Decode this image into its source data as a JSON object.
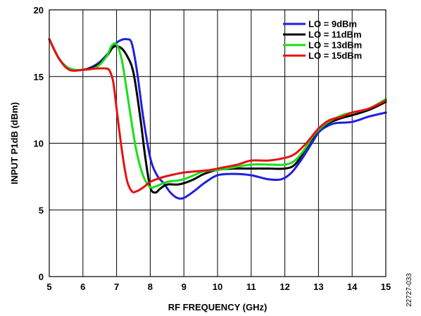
{
  "figure_id": "22727-033",
  "chart_data": {
    "type": "line",
    "xlabel": "RF FREQUENCY (GHz)",
    "ylabel": "INPUT P1dB (dBm)",
    "xlim": [
      5,
      15
    ],
    "ylim": [
      0,
      20
    ],
    "xticks": [
      5,
      6,
      7,
      8,
      9,
      10,
      11,
      12,
      13,
      14,
      15
    ],
    "yticks": [
      0,
      5,
      10,
      15,
      20
    ],
    "grid": true,
    "legend_position": "top-right",
    "series": [
      {
        "name": "LO = 9dBm",
        "color": "#1f1fe0",
        "x": [
          5,
          5.3,
          5.6,
          6.0,
          6.4,
          6.7,
          6.9,
          7.1,
          7.3,
          7.45,
          7.6,
          7.8,
          8.0,
          8.2,
          8.4,
          8.6,
          8.8,
          9.0,
          9.3,
          9.6,
          10.0,
          10.5,
          11.0,
          11.5,
          11.9,
          12.2,
          12.5,
          12.8,
          13.0,
          13.2,
          13.5,
          14.0,
          14.5,
          15.0
        ],
        "y": [
          17.8,
          16.3,
          15.6,
          15.5,
          15.9,
          16.6,
          17.3,
          17.7,
          17.8,
          17.5,
          15.5,
          11.8,
          8.9,
          7.6,
          7.0,
          6.3,
          5.9,
          5.9,
          6.4,
          7.0,
          7.6,
          7.7,
          7.6,
          7.3,
          7.3,
          7.8,
          8.8,
          10.0,
          10.8,
          11.2,
          11.5,
          11.6,
          12.0,
          12.3
        ]
      },
      {
        "name": "LO = 11dBm",
        "color": "#000000",
        "x": [
          5,
          5.3,
          5.6,
          6.0,
          6.4,
          6.7,
          6.9,
          7.1,
          7.3,
          7.5,
          7.7,
          7.85,
          8.0,
          8.15,
          8.3,
          8.5,
          8.8,
          9.0,
          9.3,
          9.6,
          10.0,
          10.5,
          11.0,
          11.5,
          12.0,
          12.3,
          12.6,
          12.8,
          13.0,
          13.3,
          13.7,
          14.0,
          14.5,
          15.0
        ],
        "y": [
          17.8,
          16.3,
          15.6,
          15.5,
          15.8,
          16.5,
          17.2,
          17.2,
          16.6,
          15.3,
          12.0,
          9.0,
          6.7,
          6.3,
          6.6,
          6.9,
          6.9,
          7.0,
          7.3,
          7.7,
          8.0,
          8.1,
          8.1,
          8.1,
          8.1,
          8.4,
          9.5,
          10.3,
          11.0,
          11.5,
          11.9,
          12.1,
          12.5,
          13.1
        ]
      },
      {
        "name": "LO = 13dBm",
        "color": "#16e016",
        "x": [
          5,
          5.3,
          5.6,
          6.0,
          6.4,
          6.7,
          6.85,
          7.0,
          7.15,
          7.3,
          7.45,
          7.6,
          7.8,
          8.0,
          8.2,
          8.5,
          8.8,
          9.0,
          9.3,
          9.6,
          10.0,
          10.5,
          11.0,
          11.5,
          12.0,
          12.3,
          12.6,
          12.8,
          13.0,
          13.3,
          13.7,
          14.0,
          14.5,
          15.0
        ],
        "y": [
          17.8,
          16.3,
          15.6,
          15.5,
          15.7,
          16.5,
          17.3,
          17.4,
          16.3,
          14.0,
          11.5,
          9.3,
          7.5,
          6.7,
          6.8,
          7.1,
          7.2,
          7.3,
          7.6,
          7.9,
          8.0,
          8.2,
          8.4,
          8.4,
          8.4,
          8.7,
          9.6,
          10.4,
          11.0,
          11.6,
          12.1,
          12.3,
          12.6,
          13.3
        ]
      },
      {
        "name": "LO = 15dBm",
        "color": "#e81010",
        "x": [
          5,
          5.3,
          5.6,
          6.0,
          6.4,
          6.7,
          6.8,
          6.9,
          7.0,
          7.15,
          7.3,
          7.45,
          7.6,
          7.8,
          8.0,
          8.3,
          8.6,
          9.0,
          9.4,
          9.8,
          10.2,
          10.6,
          11.0,
          11.5,
          12.0,
          12.3,
          12.6,
          12.8,
          13.0,
          13.3,
          13.7,
          14.0,
          14.5,
          15.0
        ],
        "y": [
          17.8,
          16.3,
          15.5,
          15.5,
          15.6,
          15.6,
          15.4,
          14.6,
          12.6,
          9.6,
          7.3,
          6.4,
          6.4,
          6.7,
          7.1,
          7.4,
          7.6,
          7.8,
          7.9,
          8.0,
          8.2,
          8.4,
          8.7,
          8.7,
          8.9,
          9.2,
          9.9,
          10.5,
          11.1,
          11.7,
          12.0,
          12.3,
          12.6,
          13.2
        ]
      }
    ]
  }
}
